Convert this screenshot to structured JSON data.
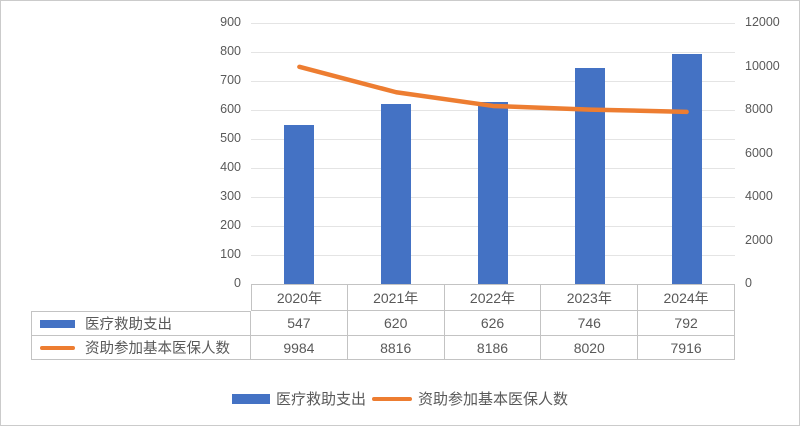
{
  "chart_data": {
    "type": "combo",
    "categories": [
      "2020年",
      "2021年",
      "2022年",
      "2023年",
      "2024年"
    ],
    "series": [
      {
        "name": "医疗救助支出",
        "chart_type": "bar",
        "axis": "left",
        "color": "#4472C4",
        "values": [
          547,
          620,
          626,
          746,
          792
        ]
      },
      {
        "name": "资助参加基本医保人数",
        "chart_type": "line",
        "axis": "right",
        "color": "#ED7D31",
        "values": [
          9984,
          8816,
          8186,
          8020,
          7916
        ]
      }
    ],
    "axes": {
      "left": {
        "min": 0,
        "max": 900,
        "step": 100,
        "ticks": [
          "0",
          "100",
          "200",
          "300",
          "400",
          "500",
          "600",
          "700",
          "800",
          "900"
        ]
      },
      "right": {
        "min": 0,
        "max": 12000,
        "step": 2000,
        "ticks": [
          "0",
          "2000",
          "4000",
          "6000",
          "8000",
          "10000",
          "12000"
        ]
      }
    },
    "grid": true,
    "legend_position": "bottom",
    "data_table_visible": true
  },
  "colors": {
    "bar": "#4472C4",
    "line": "#ED7D31",
    "gridline": "#e4e4e4",
    "table_border": "#c3c3c3",
    "text": "#595959"
  }
}
